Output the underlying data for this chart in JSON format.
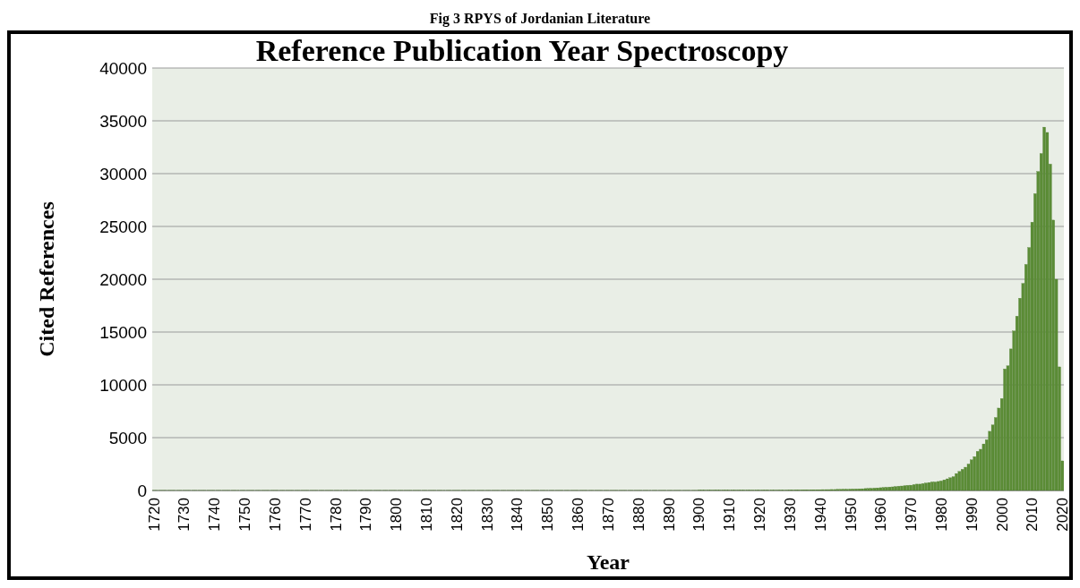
{
  "chart_data": {
    "type": "bar",
    "title": "Reference Publication Year Spectroscopy",
    "annotations": [
      "Fig 3 RPYS of Jordanian Literature"
    ],
    "xlabel": "Year",
    "ylabel": "Cited References",
    "categories": [
      "1720",
      null,
      null,
      null,
      null,
      null,
      null,
      null,
      null,
      null,
      "1730",
      null,
      null,
      null,
      null,
      null,
      null,
      null,
      null,
      null,
      "1740",
      null,
      null,
      null,
      null,
      null,
      null,
      null,
      null,
      null,
      "1750",
      null,
      null,
      null,
      null,
      null,
      null,
      null,
      null,
      null,
      "1760",
      null,
      null,
      null,
      null,
      null,
      null,
      null,
      null,
      null,
      "1770",
      null,
      null,
      null,
      null,
      null,
      null,
      null,
      null,
      null,
      "1780",
      null,
      null,
      null,
      null,
      null,
      null,
      null,
      null,
      null,
      "1790",
      null,
      null,
      null,
      null,
      null,
      null,
      null,
      null,
      null,
      "1800",
      null,
      null,
      null,
      null,
      null,
      null,
      null,
      null,
      null,
      "1810",
      null,
      null,
      null,
      null,
      null,
      null,
      null,
      null,
      null,
      "1820",
      null,
      null,
      null,
      null,
      null,
      null,
      null,
      null,
      null,
      "1830",
      null,
      null,
      null,
      null,
      null,
      null,
      null,
      null,
      null,
      "1840",
      null,
      null,
      null,
      null,
      null,
      null,
      null,
      null,
      null,
      "1850",
      null,
      null,
      null,
      null,
      null,
      null,
      null,
      null,
      null,
      "1860",
      null,
      null,
      null,
      null,
      null,
      null,
      null,
      null,
      null,
      "1870",
      null,
      null,
      null,
      null,
      null,
      null,
      null,
      null,
      null,
      "1880",
      null,
      null,
      null,
      null,
      null,
      null,
      null,
      null,
      null,
      "1890",
      null,
      null,
      null,
      null,
      null,
      null,
      null,
      null,
      null,
      "1900",
      null,
      null,
      null,
      null,
      null,
      null,
      null,
      null,
      null,
      "1910",
      null,
      null,
      null,
      null,
      null,
      null,
      null,
      null,
      null,
      "1920",
      null,
      null,
      null,
      null,
      null,
      null,
      null,
      null,
      null,
      "1930",
      null,
      null,
      null,
      null,
      null,
      null,
      null,
      null,
      null,
      "1940",
      null,
      null,
      null,
      null,
      null,
      null,
      null,
      null,
      null,
      "1950",
      null,
      null,
      null,
      null,
      null,
      null,
      null,
      null,
      null,
      "1960",
      null,
      null,
      null,
      null,
      null,
      null,
      null,
      null,
      null,
      "1970",
      null,
      null,
      null,
      null,
      null,
      null,
      null,
      null,
      null,
      "1980",
      null,
      null,
      null,
      null,
      null,
      null,
      null,
      null,
      null,
      "1990",
      null,
      null,
      null,
      null,
      null,
      null,
      null,
      null,
      null,
      "2000",
      null,
      null,
      null,
      null,
      null,
      null,
      null,
      null,
      null,
      "2010",
      null,
      null,
      null,
      null,
      null,
      null,
      null,
      null,
      null,
      "2020"
    ],
    "values": [
      10,
      10,
      10,
      10,
      10,
      10,
      10,
      10,
      10,
      10,
      10,
      10,
      10,
      10,
      10,
      10,
      10,
      10,
      10,
      10,
      10,
      10,
      10,
      10,
      10,
      10,
      10,
      10,
      10,
      10,
      10,
      10,
      10,
      10,
      10,
      10,
      10,
      10,
      10,
      10,
      10,
      10,
      10,
      10,
      10,
      10,
      10,
      10,
      10,
      10,
      10,
      10,
      10,
      10,
      10,
      10,
      10,
      10,
      10,
      10,
      10,
      10,
      10,
      10,
      10,
      10,
      10,
      10,
      10,
      10,
      10,
      10,
      10,
      10,
      10,
      10,
      10,
      10,
      10,
      10,
      10,
      10,
      10,
      10,
      10,
      10,
      10,
      10,
      10,
      10,
      10,
      10,
      10,
      10,
      10,
      10,
      10,
      10,
      10,
      10,
      10,
      10,
      10,
      10,
      10,
      10,
      10,
      10,
      10,
      10,
      10,
      10,
      10,
      10,
      10,
      10,
      10,
      10,
      10,
      10,
      10,
      10,
      10,
      10,
      10,
      10,
      10,
      10,
      10,
      10,
      10,
      10,
      10,
      10,
      10,
      10,
      10,
      10,
      10,
      10,
      10,
      10,
      10,
      10,
      10,
      10,
      10,
      10,
      10,
      10,
      10,
      10,
      10,
      10,
      10,
      10,
      10,
      10,
      10,
      10,
      10,
      10,
      10,
      10,
      10,
      10,
      10,
      10,
      10,
      10,
      10,
      10,
      10,
      10,
      10,
      10,
      10,
      10,
      10,
      10,
      20,
      20,
      20,
      20,
      20,
      20,
      20,
      20,
      20,
      20,
      20,
      20,
      20,
      20,
      20,
      20,
      20,
      20,
      20,
      20,
      20,
      20,
      20,
      20,
      20,
      20,
      20,
      20,
      20,
      20,
      40,
      40,
      50,
      50,
      50,
      60,
      60,
      60,
      70,
      70,
      70,
      80,
      80,
      80,
      90,
      90,
      100,
      100,
      110,
      110,
      120,
      130,
      140,
      150,
      160,
      180,
      190,
      200,
      220,
      240,
      260,
      280,
      300,
      320,
      340,
      370,
      400,
      420,
      450,
      480,
      500,
      550,
      600,
      600,
      650,
      700,
      750,
      800,
      800,
      850,
      900,
      1000,
      1100,
      1200,
      1300,
      1600,
      1800,
      2000,
      2200,
      2500,
      2900,
      3200,
      3700,
      3900,
      4400,
      4800,
      5600,
      6200,
      6900,
      7800,
      8700,
      11500,
      11800,
      13400,
      15100,
      16500,
      18200,
      19600,
      21400,
      23000,
      25400,
      28100,
      30200,
      31900,
      34400,
      33900,
      30900,
      25600,
      20000,
      11700,
      2800
    ],
    "color": "#5b8c36",
    "ylim": [
      0,
      40000
    ],
    "yticks": [
      0,
      5000,
      10000,
      15000,
      20000,
      25000,
      30000,
      35000,
      40000
    ],
    "grid": "y"
  }
}
